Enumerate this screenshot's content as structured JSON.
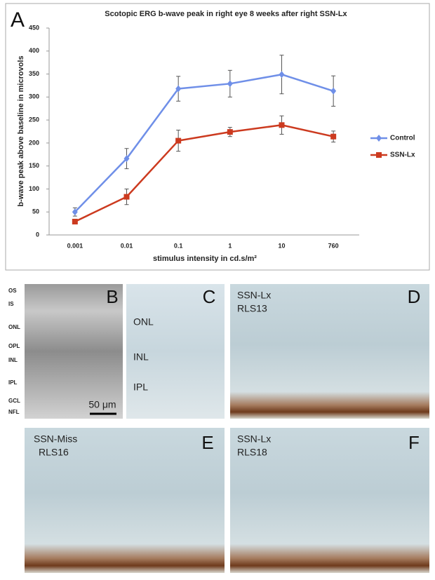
{
  "chart_data": {
    "type": "line",
    "panel_label": "A",
    "title": "Scotopic ERG b-wave peak in right eye 8 weeks after right SSN-Lx",
    "x_label": "stimulus intensity in cd.s/m²",
    "y_label": "b-wave peak above baseline in microvols",
    "categories": [
      "0.001",
      "0.01",
      "0.1",
      "1",
      "10",
      "760"
    ],
    "ylim": [
      0,
      450
    ],
    "yticks": [
      0,
      50,
      100,
      150,
      200,
      250,
      300,
      350,
      400,
      450
    ],
    "grid": false,
    "legend": "right",
    "series": [
      {
        "name": "Control",
        "color": "#6f8fe8",
        "marker": "diamond",
        "values": [
          50,
          166,
          318,
          329,
          349,
          313
        ],
        "errors": [
          9,
          22,
          27,
          29,
          42,
          33
        ]
      },
      {
        "name": "SSN-Lx",
        "color": "#cc3a1f",
        "marker": "square",
        "values": [
          29,
          83,
          205,
          224,
          239,
          214
        ],
        "errors": [
          5,
          17,
          23,
          10,
          20,
          12
        ]
      }
    ]
  },
  "layer_labels": [
    "OS",
    "IS",
    "ONL",
    "OPL",
    "INL",
    "IPL",
    "GCL",
    "NFL"
  ],
  "panels": [
    {
      "label": "B",
      "texts": [],
      "scale_bar": "50 μm"
    },
    {
      "label": "C",
      "texts": [
        "ONL",
        "INL",
        "IPL"
      ]
    },
    {
      "label": "D",
      "texts": [
        "SSN-Lx",
        "RLS13"
      ]
    },
    {
      "label": "E",
      "texts": [
        "SSN-Miss",
        "RLS16"
      ]
    },
    {
      "label": "F",
      "texts": [
        "SSN-Lx",
        "RLS18"
      ]
    }
  ]
}
